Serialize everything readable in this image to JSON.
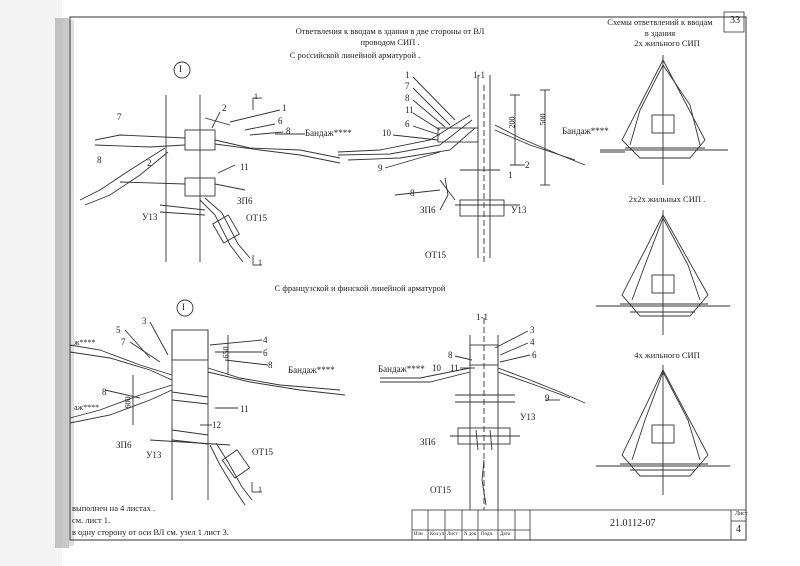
{
  "header": {
    "title_line1": "Ответвления к вводам в здания в две стороны от ВЛ",
    "title_line2": "проводом СИП .",
    "subtitle_russian": "С российской линейной арматурой .",
    "subtitle_french": "С французской и финской линейной арматурой",
    "page_number": "33"
  },
  "schemes": {
    "title_line1": "Схемы ответвлений к вводам",
    "title_line2": "в здания",
    "items": [
      {
        "label": "2х жильного СИП"
      },
      {
        "label": "2х2х жильных СИП ."
      },
      {
        "label": "4х жильного СИП"
      }
    ]
  },
  "diagrams": {
    "d1": {
      "marker": "I",
      "c7": "7",
      "c2": "2",
      "c1": "1",
      "c6": "6",
      "c8": "8",
      "bandage": "Бандаж****",
      "c11": "11",
      "c8b": "8",
      "c2b": "2",
      "c3p6": "ЗП6",
      "u13": "У13",
      "ot15": "ОТ15",
      "sect_top": "1",
      "sect_bottom": "1"
    },
    "d2": {
      "section": "1-1",
      "c1": "1",
      "c7": "7",
      "c8": "8",
      "c11": "11",
      "c6": "6",
      "c10": "10",
      "c9": "9",
      "c8b": "8",
      "c2": "2",
      "c1b": "1",
      "bandage": "Бандаж****",
      "dim1": "200",
      "dim2": "500",
      "c3p6": "ЗП6",
      "u13": "У13",
      "ot15": "ОТ15"
    },
    "d3": {
      "marker": "I",
      "c5": "5",
      "c3": "3",
      "c7": "7",
      "band_left1": "ж****",
      "c4": "4",
      "c6": "6",
      "c8": "8",
      "bandage": "Бандаж****",
      "c8b": "8",
      "band_left2": "аж****",
      "c11": "11",
      "c12": "12",
      "c3p6": "ЗП6",
      "u13": "У13",
      "ot15": "ОТ15",
      "dim1": "600",
      "dim2": "650",
      "sect": "1"
    },
    "d4": {
      "section": "1-1",
      "c3": "3",
      "c4": "4",
      "c6": "6",
      "c8": "8",
      "c10": "10",
      "c11": "11",
      "bandage": "Бандаж****",
      "c9": "9",
      "u13": "У13",
      "c3p6": "ЗП6",
      "ot15": "ОТ15"
    }
  },
  "notes": [
    "выполнен на 4 листах .",
    "см. лист 1.",
    "в одну сторону от оси ВЛ см. узел 1 лист 3."
  ],
  "title_block": {
    "code": "21.0112-07",
    "sheet_label": "Лист",
    "sheet_number": "4",
    "columns": [
      "Изм",
      "Кол.уч",
      "Лист",
      "N док",
      "Подп.",
      "Дата"
    ]
  }
}
